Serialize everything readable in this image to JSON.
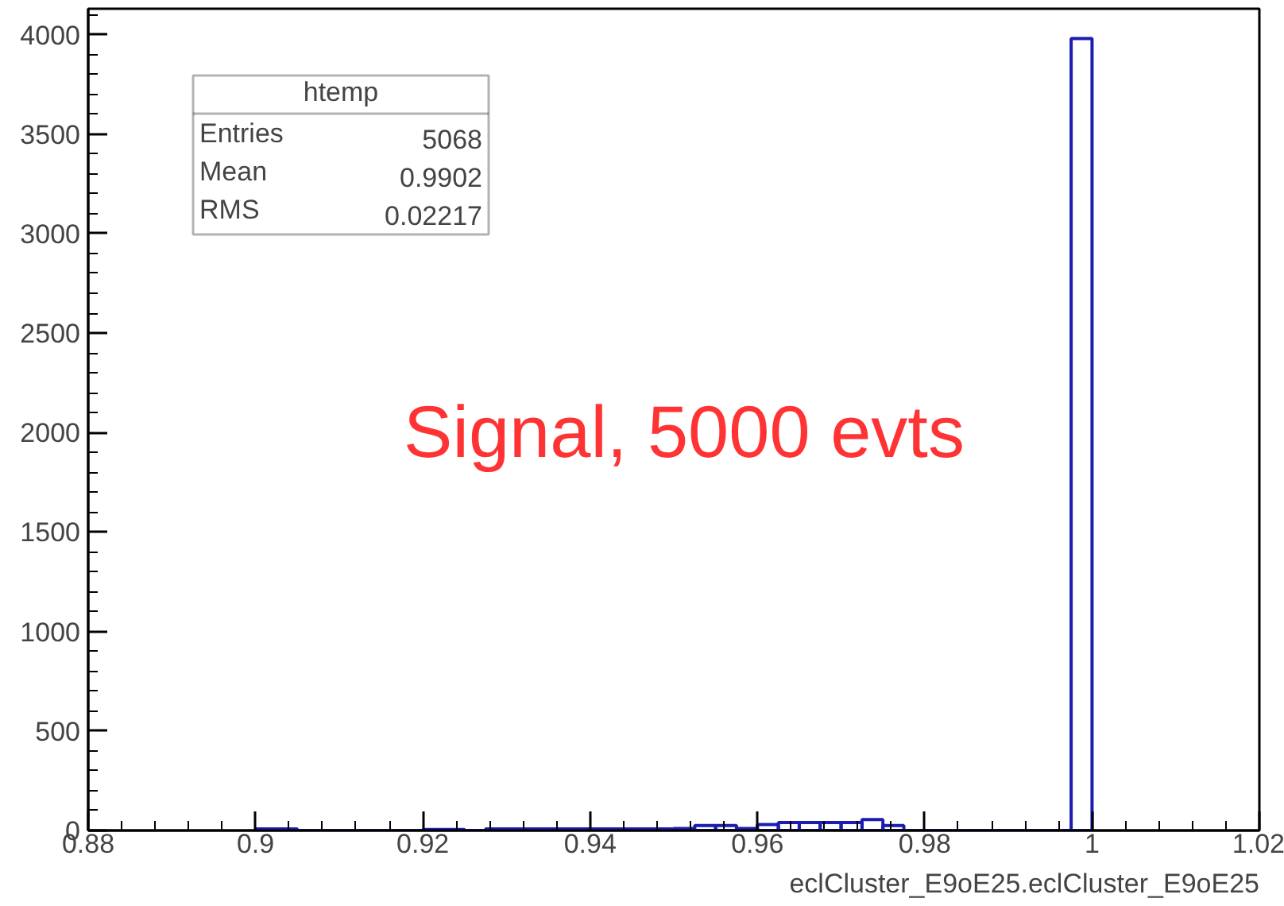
{
  "chart_data": {
    "type": "histogram",
    "title": "htemp",
    "xlabel": "eclCluster_E9oE25.eclCluster_E9oE25",
    "bins": [
      0.9,
      0.9025,
      0.905,
      0.9075,
      0.91,
      0.9125,
      0.915,
      0.9175,
      0.92,
      0.9225,
      0.925,
      0.9275,
      0.93,
      0.9325,
      0.935,
      0.9375,
      0.94,
      0.9425,
      0.945,
      0.9475,
      0.95,
      0.9525,
      0.955,
      0.9575,
      0.96,
      0.9625,
      0.965,
      0.9675,
      0.97,
      0.9725,
      0.975,
      0.9775,
      0.98,
      0.9825,
      0.985,
      0.9875,
      0.99,
      0.9925,
      0.995,
      0.9975,
      1.0
    ],
    "values": [
      8,
      8,
      0,
      0,
      0,
      0,
      0,
      0,
      5,
      5,
      0,
      8,
      8,
      8,
      8,
      8,
      8,
      8,
      8,
      8,
      10,
      25,
      25,
      10,
      30,
      40,
      40,
      40,
      40,
      55,
      25,
      0,
      0,
      0,
      0,
      0,
      0,
      0,
      0,
      3980
    ],
    "color": "#1c1cb0",
    "xlim": [
      0.88,
      1.02
    ],
    "xticks": [
      0.88,
      0.9,
      0.92,
      0.94,
      0.96,
      0.98,
      1,
      1.02
    ],
    "ylim": [
      0,
      4130
    ],
    "yticks": [
      0,
      500,
      1000,
      1500,
      2000,
      2500,
      3000,
      3500,
      4000
    ],
    "annotations": [
      "Entries",
      "5068",
      "Mean",
      "0.9902",
      "RMS",
      "0.02217",
      "Signal, 5000 evts"
    ],
    "grid": false
  }
}
